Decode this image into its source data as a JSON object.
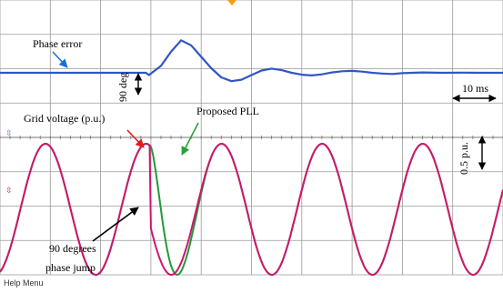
{
  "chart_data": {
    "type": "line",
    "title": "",
    "xlabel": "",
    "ylabel": "",
    "xlim": [
      0,
      100
    ],
    "time_per_div": "10 ms",
    "grid": true,
    "background": "#ffffff",
    "grid_color": "#9a9a9a",
    "phase_jump_time": 30,
    "series": [
      {
        "color": "#2f55c8",
        "description_key": "phase_error",
        "x": [
          0,
          29,
          29.6,
          32,
          34,
          36,
          38,
          40,
          42,
          44,
          46,
          48,
          50,
          52,
          54,
          56,
          58,
          60,
          62,
          64,
          66,
          68,
          70,
          72,
          74,
          76,
          78,
          80,
          84,
          88,
          92,
          96,
          100
        ],
        "y": [
          0,
          0,
          -0.06,
          0.18,
          0.55,
          0.85,
          0.72,
          0.42,
          0.12,
          -0.12,
          -0.22,
          -0.18,
          -0.06,
          0.06,
          0.11,
          0.07,
          0,
          -0.05,
          -0.07,
          -0.04,
          0.01,
          0.04,
          0.05,
          0.03,
          0,
          -0.02,
          -0.03,
          -0.01,
          0.01,
          0,
          0.005,
          0,
          0
        ]
      },
      {
        "color": "#d0156f",
        "description_key": "grid_voltage",
        "frequency_cycles_per_10ms": 0.5,
        "amplitude_pu": 1.0,
        "phase_jump_deg": 90
      },
      {
        "color": "#1f9a3a",
        "description_key": "proposed_pll",
        "frequency_cycles_per_10ms": 0.5,
        "amplitude_pu": 1.0
      }
    ],
    "annotations": {
      "phase_error": "Phase error",
      "grid_voltage": "Grid voltage (p.u.)",
      "proposed_pll": "Proposed PLL",
      "deg_scale": "90 deg",
      "time_scale": "10 ms",
      "pu_scale": "0.5 p.u.",
      "jump_line1": "90 degrees",
      "jump_line2": "phase jump"
    }
  },
  "footer": {
    "help_menu": "Help Menu"
  },
  "colors": {
    "phase_error": "#2f55c8",
    "grid_voltage": "#d0156f",
    "pll": "#1f9a3a",
    "arrow_blue": "#1a6fd6",
    "arrow_red": "#e11b1b",
    "arrow_green": "#27a13a",
    "trigger_marker": "#f39c12"
  }
}
